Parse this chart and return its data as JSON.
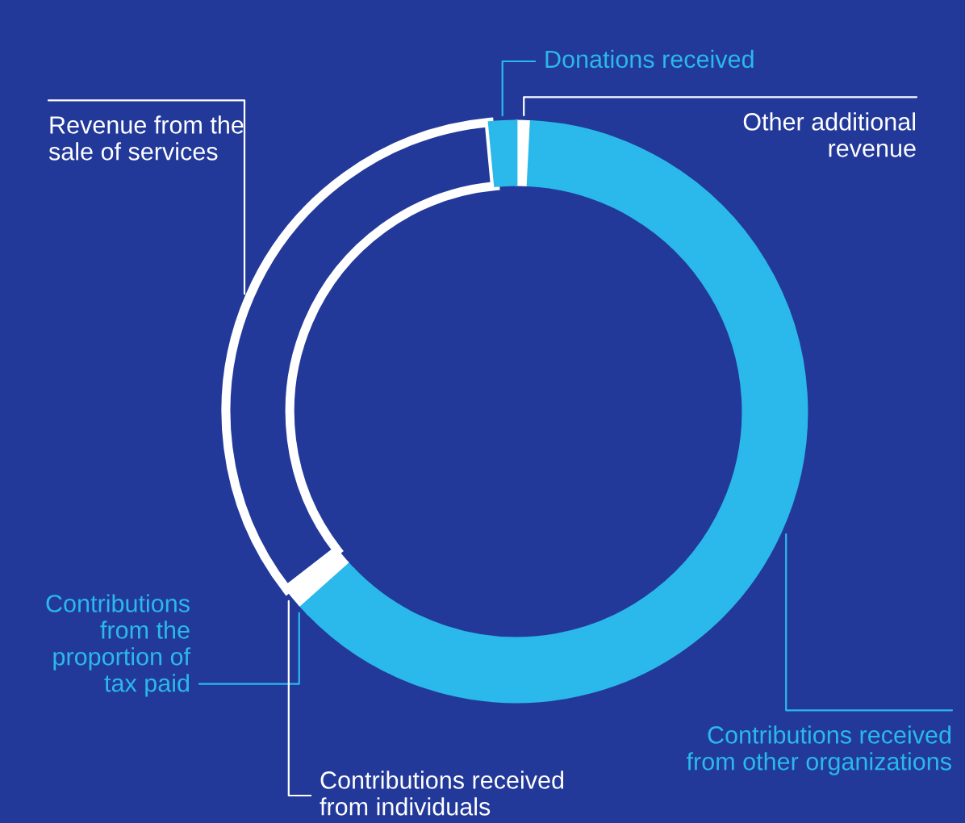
{
  "chart_data": {
    "type": "donut",
    "categories": [
      "Other additional revenue",
      "Contributions received from other organizations",
      "Contributions from the proportion of tax paid",
      "Contributions received from individuals",
      "Revenue from the sale of services",
      "Donations received"
    ],
    "values": [
      0.8,
      62.0,
      0.6,
      1.1,
      34.0,
      1.5
    ],
    "colors": [
      "#ffffff",
      "#2bb8ea",
      "#2bb8ea",
      "#ffffff",
      "#ffffff",
      "#2bb8ea"
    ]
  }
}
